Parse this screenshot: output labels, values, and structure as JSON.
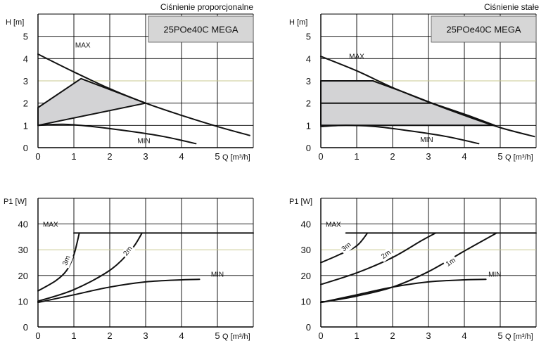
{
  "chart_data": [
    {
      "type": "line",
      "title": "Ciśnienie proporcjonalne",
      "model": "25POe40C MEGA",
      "xlabel": "Q [m³/h]",
      "ylabel": "H [m]",
      "xlim": [
        0,
        6
      ],
      "ylim": [
        0,
        6
      ],
      "xticks": [
        "0",
        "1",
        "2",
        "3",
        "4",
        "5"
      ],
      "yticks": [
        "0",
        "1",
        "2",
        "3",
        "4",
        "5"
      ],
      "highlight_y": [
        3
      ],
      "region": [
        [
          0,
          1.8
        ],
        [
          1.2,
          3.1
        ],
        [
          3,
          2.0
        ],
        [
          0,
          1.0
        ]
      ],
      "series": [
        {
          "name": "MAX",
          "label_at": [
            1.25,
            4.5
          ],
          "points": [
            [
              0,
              4.2
            ],
            [
              1,
              3.4
            ],
            [
              2,
              2.65
            ],
            [
              3,
              2.0
            ],
            [
              4,
              1.45
            ],
            [
              5,
              0.95
            ],
            [
              5.9,
              0.55
            ]
          ]
        },
        {
          "name": "MIN",
          "label_at": [
            2.95,
            0.2
          ],
          "points": [
            [
              0,
              1.0
            ],
            [
              0.7,
              1.05
            ],
            [
              1.5,
              0.95
            ],
            [
              2.5,
              0.75
            ],
            [
              3.5,
              0.5
            ],
            [
              4.4,
              0.18
            ]
          ]
        }
      ],
      "annotations": []
    },
    {
      "type": "line",
      "title": "Ciśnienie stałe",
      "model": "25POe40C MEGA",
      "xlabel": "Q [m³/h]",
      "ylabel": "H [m]",
      "xlim": [
        0,
        6
      ],
      "ylim": [
        0,
        6
      ],
      "xticks": [
        "0",
        "1",
        "2",
        "3",
        "4",
        "5"
      ],
      "yticks": [
        "0",
        "1",
        "2",
        "3",
        "4",
        "5"
      ],
      "highlight_y": [
        3
      ],
      "region": [
        [
          0,
          3.0
        ],
        [
          1.45,
          3.0
        ],
        [
          2.3,
          2.5
        ],
        [
          3.1,
          2.0
        ],
        [
          4.1,
          1.45
        ],
        [
          4.85,
          1.0
        ],
        [
          0,
          1.0
        ]
      ],
      "series": [
        {
          "name": "MAX",
          "label_at": [
            1.0,
            4.0
          ],
          "points": [
            [
              0,
              4.1
            ],
            [
              1,
              3.45
            ],
            [
              2,
              2.7
            ],
            [
              3,
              2.05
            ],
            [
              4,
              1.45
            ],
            [
              5,
              0.9
            ],
            [
              5.95,
              0.5
            ]
          ]
        },
        {
          "name": "MIN",
          "label_at": [
            2.95,
            0.25
          ],
          "points": [
            [
              0,
              0.95
            ],
            [
              0.7,
              1.0
            ],
            [
              1.5,
              0.95
            ],
            [
              2.5,
              0.75
            ],
            [
              3.5,
              0.5
            ],
            [
              4.4,
              0.18
            ]
          ]
        },
        {
          "name": "",
          "label_at": null,
          "points": [
            [
              0,
              3.0
            ],
            [
              1.45,
              3.0
            ]
          ]
        },
        {
          "name": "",
          "label_at": null,
          "points": [
            [
              0,
              2.0
            ],
            [
              3.1,
              2.0
            ]
          ]
        }
      ],
      "annotations": []
    },
    {
      "type": "line",
      "title": "",
      "model": "",
      "xlabel": "Q [m³/h]",
      "ylabel": "P1 [W]",
      "xlim": [
        0,
        6
      ],
      "ylim": [
        0,
        50
      ],
      "xticks": [
        "0",
        "1",
        "2",
        "3",
        "4",
        "5"
      ],
      "yticks": [
        "0",
        "10",
        "20",
        "30",
        "40"
      ],
      "highlight_y": [
        30
      ],
      "region": null,
      "series": [
        {
          "name": "MAX",
          "label_at": [
            0.35,
            39
          ],
          "points": [
            [
              1.0,
              36.5
            ],
            [
              6.0,
              36.5
            ]
          ]
        },
        {
          "name": "MIN",
          "label_at": [
            5.0,
            19.5
          ],
          "points": [
            [
              0,
              9.5
            ],
            [
              1,
              12.5
            ],
            [
              2,
              15.5
            ],
            [
              3,
              17.5
            ],
            [
              4,
              18.3
            ],
            [
              4.5,
              18.5
            ]
          ]
        },
        {
          "name": "3m",
          "label_at": [
            0.85,
            25.5
          ],
          "points": [
            [
              0,
              14
            ],
            [
              0.5,
              18
            ],
            [
              0.8,
              22
            ],
            [
              1.0,
              28
            ],
            [
              1.15,
              36.5
            ]
          ]
        },
        {
          "name": "2m",
          "label_at": [
            2.55,
            29
          ],
          "points": [
            [
              0,
              10
            ],
            [
              1,
              14.5
            ],
            [
              2,
              22
            ],
            [
              2.6,
              30
            ],
            [
              2.9,
              36.5
            ]
          ]
        }
      ],
      "annotations": [
        {
          "text": "3m",
          "at": [
            0.85,
            25.5
          ],
          "angle": -68
        },
        {
          "text": "2m",
          "at": [
            2.55,
            29
          ],
          "angle": -52
        }
      ]
    },
    {
      "type": "line",
      "title": "",
      "model": "",
      "xlabel": "Q [m³/h]",
      "ylabel": "P1 [W]",
      "xlim": [
        0,
        6
      ],
      "ylim": [
        0,
        50
      ],
      "xticks": [
        "0",
        "1",
        "2",
        "3",
        "4",
        "5"
      ],
      "yticks": [
        "0",
        "10",
        "20",
        "30",
        "40"
      ],
      "highlight_y": [
        30
      ],
      "region": null,
      "series": [
        {
          "name": "MAX",
          "label_at": [
            0.35,
            39
          ],
          "points": [
            [
              0.7,
              36.5
            ],
            [
              6.0,
              36.5
            ]
          ]
        },
        {
          "name": "MIN",
          "label_at": [
            4.85,
            19.5
          ],
          "points": [
            [
              0,
              9.5
            ],
            [
              1,
              12.5
            ],
            [
              2,
              15.5
            ],
            [
              3,
              17.5
            ],
            [
              4,
              18.3
            ],
            [
              4.6,
              18.5
            ]
          ]
        },
        {
          "name": "3m",
          "label_at": [
            0.75,
            30.5
          ],
          "points": [
            [
              0,
              25
            ],
            [
              0.5,
              28
            ],
            [
              1.0,
              31.5
            ],
            [
              1.3,
              36.5
            ]
          ]
        },
        {
          "name": "2m",
          "label_at": [
            1.85,
            27.5
          ],
          "points": [
            [
              0,
              16.5
            ],
            [
              1,
              21
            ],
            [
              2,
              27
            ],
            [
              2.8,
              33.5
            ],
            [
              3.2,
              36.5
            ]
          ]
        },
        {
          "name": "1m",
          "label_at": [
            3.65,
            24.5
          ],
          "points": [
            [
              0,
              9.5
            ],
            [
              1,
              12
            ],
            [
              2,
              15.5
            ],
            [
              3,
              21.5
            ],
            [
              4,
              29.5
            ],
            [
              4.9,
              36.5
            ]
          ]
        }
      ],
      "annotations": [
        {
          "text": "3m",
          "at": [
            0.75,
            30.5
          ],
          "angle": -40
        },
        {
          "text": "2m",
          "at": [
            1.85,
            27.5
          ],
          "angle": -36
        },
        {
          "text": "1m",
          "at": [
            3.65,
            24.5
          ],
          "angle": -33
        }
      ]
    }
  ]
}
